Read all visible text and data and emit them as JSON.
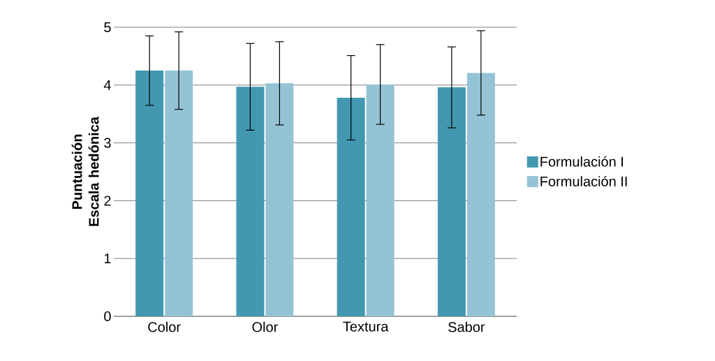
{
  "chart_data": {
    "type": "bar",
    "ylabel": "Puntuación Escala hedónica",
    "categories": [
      "Color",
      "Olor",
      "Textura",
      "Sabor"
    ],
    "series": [
      {
        "name": "Formulación I",
        "color": "#4398b0",
        "values": [
          4.25,
          3.97,
          3.78,
          3.96
        ],
        "errors": [
          0.6,
          0.75,
          0.73,
          0.7
        ]
      },
      {
        "name": "Formulación II",
        "color": "#94c3d5",
        "values": [
          4.25,
          4.03,
          4.01,
          4.21
        ],
        "errors": [
          0.67,
          0.72,
          0.69,
          0.73
        ]
      }
    ],
    "ylim": [
      0,
      5
    ],
    "yticks": [
      0,
      1,
      2,
      3,
      4,
      5
    ],
    "grid": "y",
    "legend": "right"
  }
}
